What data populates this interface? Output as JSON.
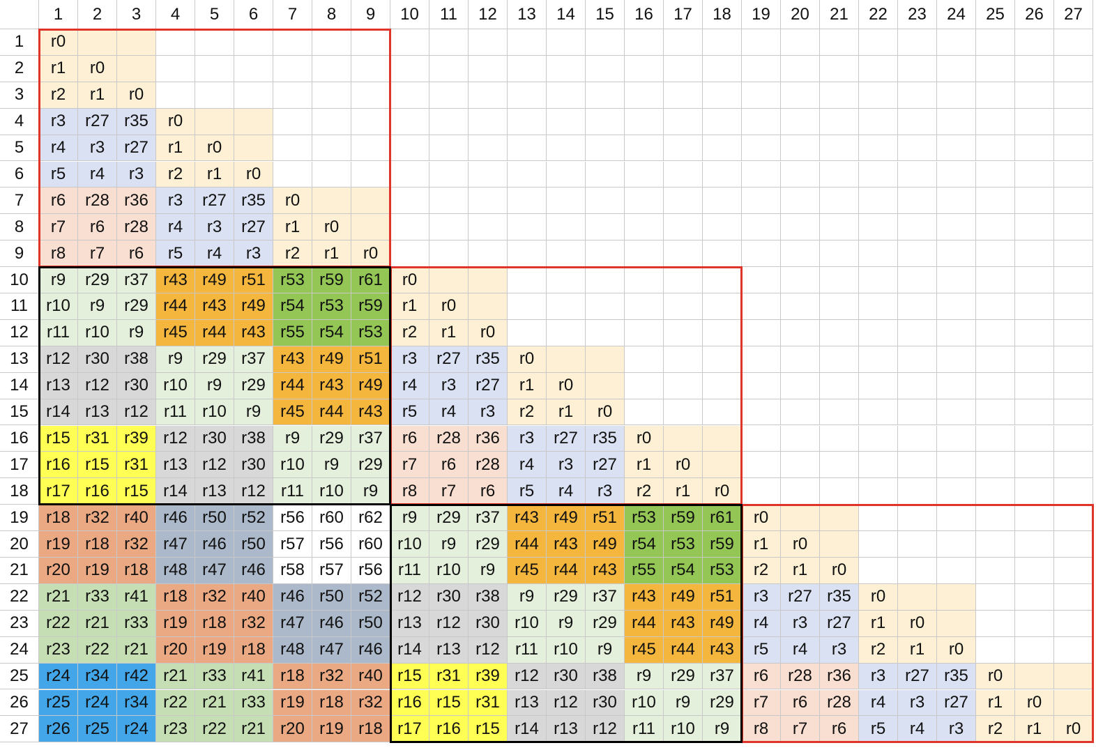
{
  "sheet": {
    "col_headers": [
      "1",
      "2",
      "3",
      "4",
      "5",
      "6",
      "7",
      "8",
      "9",
      "10",
      "11",
      "12",
      "13",
      "14",
      "15",
      "16",
      "17",
      "18",
      "19",
      "20",
      "21",
      "22",
      "23",
      "24",
      "25",
      "26",
      "27"
    ],
    "row_headers": [
      "1",
      "2",
      "3",
      "4",
      "5",
      "6",
      "7",
      "8",
      "9",
      "10",
      "11",
      "12",
      "13",
      "14",
      "15",
      "16",
      "17",
      "18",
      "19",
      "20",
      "21",
      "22",
      "23",
      "24",
      "25",
      "26",
      "27"
    ],
    "rows": [
      [
        "r0",
        "",
        "",
        "",
        "",
        "",
        "",
        "",
        "",
        "",
        "",
        "",
        "",
        "",
        "",
        "",
        "",
        "",
        "",
        "",
        "",
        "",
        "",
        "",
        "",
        "",
        ""
      ],
      [
        "r1",
        "r0",
        "",
        "",
        "",
        "",
        "",
        "",
        "",
        "",
        "",
        "",
        "",
        "",
        "",
        "",
        "",
        "",
        "",
        "",
        "",
        "",
        "",
        "",
        "",
        "",
        ""
      ],
      [
        "r2",
        "r1",
        "r0",
        "",
        "",
        "",
        "",
        "",
        "",
        "",
        "",
        "",
        "",
        "",
        "",
        "",
        "",
        "",
        "",
        "",
        "",
        "",
        "",
        "",
        "",
        "",
        ""
      ],
      [
        "r3",
        "r27",
        "r35",
        "r0",
        "",
        "",
        "",
        "",
        "",
        "",
        "",
        "",
        "",
        "",
        "",
        "",
        "",
        "",
        "",
        "",
        "",
        "",
        "",
        "",
        "",
        "",
        ""
      ],
      [
        "r4",
        "r3",
        "r27",
        "r1",
        "r0",
        "",
        "",
        "",
        "",
        "",
        "",
        "",
        "",
        "",
        "",
        "",
        "",
        "",
        "",
        "",
        "",
        "",
        "",
        "",
        "",
        "",
        ""
      ],
      [
        "r5",
        "r4",
        "r3",
        "r2",
        "r1",
        "r0",
        "",
        "",
        "",
        "",
        "",
        "",
        "",
        "",
        "",
        "",
        "",
        "",
        "",
        "",
        "",
        "",
        "",
        "",
        "",
        "",
        ""
      ],
      [
        "r6",
        "r28",
        "r36",
        "r3",
        "r27",
        "r35",
        "r0",
        "",
        "",
        "",
        "",
        "",
        "",
        "",
        "",
        "",
        "",
        "",
        "",
        "",
        "",
        "",
        "",
        "",
        "",
        "",
        ""
      ],
      [
        "r7",
        "r6",
        "r28",
        "r4",
        "r3",
        "r27",
        "r1",
        "r0",
        "",
        "",
        "",
        "",
        "",
        "",
        "",
        "",
        "",
        "",
        "",
        "",
        "",
        "",
        "",
        "",
        "",
        "",
        ""
      ],
      [
        "r8",
        "r7",
        "r6",
        "r5",
        "r4",
        "r3",
        "r2",
        "r1",
        "r0",
        "",
        "",
        "",
        "",
        "",
        "",
        "",
        "",
        "",
        "",
        "",
        "",
        "",
        "",
        "",
        "",
        "",
        ""
      ],
      [
        "r9",
        "r29",
        "r37",
        "r43",
        "r49",
        "r51",
        "r53",
        "r59",
        "r61",
        "r0",
        "",
        "",
        "",
        "",
        "",
        "",
        "",
        "",
        "",
        "",
        "",
        "",
        "",
        "",
        "",
        "",
        ""
      ],
      [
        "r10",
        "r9",
        "r29",
        "r44",
        "r43",
        "r49",
        "r54",
        "r53",
        "r59",
        "r1",
        "r0",
        "",
        "",
        "",
        "",
        "",
        "",
        "",
        "",
        "",
        "",
        "",
        "",
        "",
        "",
        "",
        ""
      ],
      [
        "r11",
        "r10",
        "r9",
        "r45",
        "r44",
        "r43",
        "r55",
        "r54",
        "r53",
        "r2",
        "r1",
        "r0",
        "",
        "",
        "",
        "",
        "",
        "",
        "",
        "",
        "",
        "",
        "",
        "",
        "",
        "",
        ""
      ],
      [
        "r12",
        "r30",
        "r38",
        "r9",
        "r29",
        "r37",
        "r43",
        "r49",
        "r51",
        "r3",
        "r27",
        "r35",
        "r0",
        "",
        "",
        "",
        "",
        "",
        "",
        "",
        "",
        "",
        "",
        "",
        "",
        "",
        ""
      ],
      [
        "r13",
        "r12",
        "r30",
        "r10",
        "r9",
        "r29",
        "r44",
        "r43",
        "r49",
        "r4",
        "r3",
        "r27",
        "r1",
        "r0",
        "",
        "",
        "",
        "",
        "",
        "",
        "",
        "",
        "",
        "",
        "",
        "",
        ""
      ],
      [
        "r14",
        "r13",
        "r12",
        "r11",
        "r10",
        "r9",
        "r45",
        "r44",
        "r43",
        "r5",
        "r4",
        "r3",
        "r2",
        "r1",
        "r0",
        "",
        "",
        "",
        "",
        "",
        "",
        "",
        "",
        "",
        "",
        "",
        ""
      ],
      [
        "r15",
        "r31",
        "r39",
        "r12",
        "r30",
        "r38",
        "r9",
        "r29",
        "r37",
        "r6",
        "r28",
        "r36",
        "r3",
        "r27",
        "r35",
        "r0",
        "",
        "",
        "",
        "",
        "",
        "",
        "",
        "",
        "",
        "",
        ""
      ],
      [
        "r16",
        "r15",
        "r31",
        "r13",
        "r12",
        "r30",
        "r10",
        "r9",
        "r29",
        "r7",
        "r6",
        "r28",
        "r4",
        "r3",
        "r27",
        "r1",
        "r0",
        "",
        "",
        "",
        "",
        "",
        "",
        "",
        "",
        "",
        ""
      ],
      [
        "r17",
        "r16",
        "r15",
        "r14",
        "r13",
        "r12",
        "r11",
        "r10",
        "r9",
        "r8",
        "r7",
        "r6",
        "r5",
        "r4",
        "r3",
        "r2",
        "r1",
        "r0",
        "",
        "",
        "",
        "",
        "",
        "",
        "",
        "",
        ""
      ],
      [
        "r18",
        "r32",
        "r40",
        "r46",
        "r50",
        "r52",
        "r56",
        "r60",
        "r62",
        "r9",
        "r29",
        "r37",
        "r43",
        "r49",
        "r51",
        "r53",
        "r59",
        "r61",
        "r0",
        "",
        "",
        "",
        "",
        "",
        "",
        "",
        ""
      ],
      [
        "r19",
        "r18",
        "r32",
        "r47",
        "r46",
        "r50",
        "r57",
        "r56",
        "r60",
        "r10",
        "r9",
        "r29",
        "r44",
        "r43",
        "r49",
        "r54",
        "r53",
        "r59",
        "r1",
        "r0",
        "",
        "",
        "",
        "",
        "",
        "",
        ""
      ],
      [
        "r20",
        "r19",
        "r18",
        "r48",
        "r47",
        "r46",
        "r58",
        "r57",
        "r56",
        "r11",
        "r10",
        "r9",
        "r45",
        "r44",
        "r43",
        "r55",
        "r54",
        "r53",
        "r2",
        "r1",
        "r0",
        "",
        "",
        "",
        "",
        "",
        ""
      ],
      [
        "r21",
        "r33",
        "r41",
        "r18",
        "r32",
        "r40",
        "r46",
        "r50",
        "r52",
        "r12",
        "r30",
        "r38",
        "r9",
        "r29",
        "r37",
        "r43",
        "r49",
        "r51",
        "r3",
        "r27",
        "r35",
        "r0",
        "",
        "",
        "",
        "",
        ""
      ],
      [
        "r22",
        "r21",
        "r33",
        "r19",
        "r18",
        "r32",
        "r47",
        "r46",
        "r50",
        "r13",
        "r12",
        "r30",
        "r10",
        "r9",
        "r29",
        "r44",
        "r43",
        "r49",
        "r4",
        "r3",
        "r27",
        "r1",
        "r0",
        "",
        "",
        "",
        ""
      ],
      [
        "r23",
        "r22",
        "r21",
        "r20",
        "r19",
        "r18",
        "r48",
        "r47",
        "r46",
        "r14",
        "r13",
        "r12",
        "r11",
        "r10",
        "r9",
        "r45",
        "r44",
        "r43",
        "r5",
        "r4",
        "r3",
        "r2",
        "r1",
        "r0",
        "",
        "",
        ""
      ],
      [
        "r24",
        "r34",
        "r42",
        "r21",
        "r33",
        "r41",
        "r18",
        "r32",
        "r40",
        "r15",
        "r31",
        "r39",
        "r12",
        "r30",
        "r38",
        "r9",
        "r29",
        "r37",
        "r6",
        "r28",
        "r36",
        "r3",
        "r27",
        "r35",
        "r0",
        "",
        ""
      ],
      [
        "r25",
        "r24",
        "r34",
        "r22",
        "r21",
        "r33",
        "r19",
        "r18",
        "r32",
        "r16",
        "r15",
        "r31",
        "r13",
        "r12",
        "r30",
        "r10",
        "r9",
        "r29",
        "r7",
        "r6",
        "r28",
        "r4",
        "r3",
        "r27",
        "r1",
        "r0",
        ""
      ],
      [
        "r26",
        "r25",
        "r24",
        "r23",
        "r22",
        "r21",
        "r20",
        "r19",
        "r18",
        "r17",
        "r16",
        "r15",
        "r14",
        "r13",
        "r12",
        "r11",
        "r10",
        "r9",
        "r8",
        "r7",
        "r6",
        "r5",
        "r4",
        "r3",
        "r2",
        "r1",
        "r0"
      ]
    ]
  },
  "colors": {
    "r0": "#fdf0d5",
    "r1": "#fdf0d5",
    "r2": "#fdf0d5",
    "r3": "#dae1f2",
    "r4": "#dae1f2",
    "r5": "#dae1f2",
    "r27": "#dae1f2",
    "r35": "#dae1f2",
    "r6": "#f9dfd1",
    "r7": "#f9dfd1",
    "r8": "#f9dfd1",
    "r28": "#f9dfd1",
    "r36": "#f9dfd1",
    "r9": "#e4efdc",
    "r10": "#e4efdc",
    "r11": "#e4efdc",
    "r29": "#e4efdc",
    "r37": "#e4efdc",
    "r12": "#d8d8d8",
    "r13": "#d8d8d8",
    "r14": "#d8d8d8",
    "r30": "#d8d8d8",
    "r38": "#d8d8d8",
    "r15": "#ffff54",
    "r16": "#ffff54",
    "r17": "#ffff54",
    "r31": "#ffff54",
    "r39": "#ffff54",
    "r18": "#eba983",
    "r19": "#eba983",
    "r20": "#eba983",
    "r32": "#eba983",
    "r40": "#eba983",
    "r21": "#c6deb4",
    "r22": "#c6deb4",
    "r23": "#c6deb4",
    "r33": "#c6deb4",
    "r41": "#c6deb4",
    "r24": "#43a6e9",
    "r25": "#43a6e9",
    "r26": "#43a6e9",
    "r34": "#43a6e9",
    "r42": "#43a6e9",
    "r43": "#f4b63d",
    "r44": "#f4b63d",
    "r45": "#f4b63d",
    "r49": "#f4b63d",
    "r51": "#f4b63d",
    "r46": "#acb9ca",
    "r47": "#acb9ca",
    "r48": "#acb9ca",
    "r50": "#acb9ca",
    "r52": "#acb9ca",
    "r53": "#93c654",
    "r54": "#93c654",
    "r55": "#93c654",
    "r59": "#93c654",
    "r61": "#93c654",
    "r56": "#ffffff",
    "r57": "#ffffff",
    "r58": "#ffffff",
    "r60": "#ffffff",
    "r62": "#ffffff"
  },
  "fill_blocks": [
    {
      "rows": [
        1,
        3
      ],
      "cols": [
        1,
        3
      ],
      "color": "#fdf0d5"
    },
    {
      "rows": [
        4,
        6
      ],
      "cols": [
        4,
        6
      ],
      "color": "#fdf0d5"
    },
    {
      "rows": [
        7,
        9
      ],
      "cols": [
        7,
        9
      ],
      "color": "#fdf0d5"
    },
    {
      "rows": [
        10,
        12
      ],
      "cols": [
        10,
        12
      ],
      "color": "#fdf0d5"
    },
    {
      "rows": [
        13,
        15
      ],
      "cols": [
        13,
        15
      ],
      "color": "#fdf0d5"
    },
    {
      "rows": [
        16,
        18
      ],
      "cols": [
        16,
        18
      ],
      "color": "#fdf0d5"
    },
    {
      "rows": [
        19,
        21
      ],
      "cols": [
        19,
        21
      ],
      "color": "#fdf0d5"
    },
    {
      "rows": [
        22,
        24
      ],
      "cols": [
        22,
        24
      ],
      "color": "#fdf0d5"
    },
    {
      "rows": [
        25,
        27
      ],
      "cols": [
        25,
        27
      ],
      "color": "#fdf0d5"
    }
  ],
  "outlines": [
    {
      "rows": [
        1,
        9
      ],
      "cols": [
        1,
        9
      ],
      "color": "#e0342b"
    },
    {
      "rows": [
        10,
        18
      ],
      "cols": [
        10,
        18
      ],
      "color": "#e0342b"
    },
    {
      "rows": [
        19,
        27
      ],
      "cols": [
        19,
        27
      ],
      "color": "#e0342b"
    },
    {
      "rows": [
        10,
        18
      ],
      "cols": [
        1,
        9
      ],
      "color": "#000000"
    },
    {
      "rows": [
        19,
        27
      ],
      "cols": [
        10,
        18
      ],
      "color": "#000000"
    }
  ]
}
